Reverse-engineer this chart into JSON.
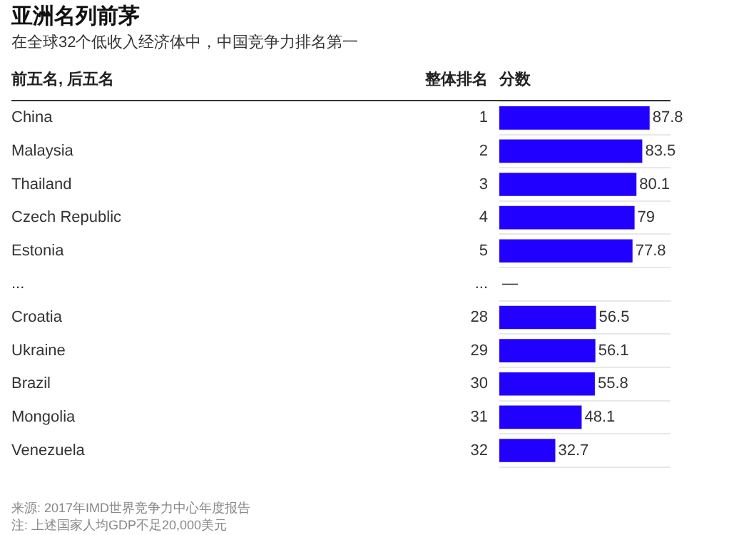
{
  "chart_data": {
    "type": "bar",
    "orientation": "horizontal",
    "title": "亚洲名列前茅",
    "subtitle": "在全球32个低收入经济体中，中国竞争力排名第一",
    "ylabel": "前五名, 后五名",
    "xlabel": "分数",
    "categories": [
      "China",
      "Malaysia",
      "Thailand",
      "Czech Republic",
      "Estonia",
      "...",
      "Croatia",
      "Ukraine",
      "Brazil",
      "Mongolia",
      "Venezuela"
    ],
    "values": [
      87.8,
      83.5,
      80.1,
      79,
      77.8,
      null,
      56.5,
      56.1,
      55.8,
      48.1,
      32.7
    ],
    "value_labels": [
      "87.8",
      "83.5",
      "80.1",
      "79",
      "77.8",
      "—",
      "56.5",
      "56.1",
      "55.8",
      "48.1",
      "32.7"
    ],
    "color": "#2200ff",
    "grid": "y",
    "annotations": [
      "整体排名",
      "1",
      "2",
      "3",
      "4",
      "5",
      "...",
      "28",
      "29",
      "30",
      "31",
      "32",
      "来源: 2017年IMD世界竞争力中心年度报告",
      "注: 上述国家人均GDP不足20,000美元"
    ]
  }
}
